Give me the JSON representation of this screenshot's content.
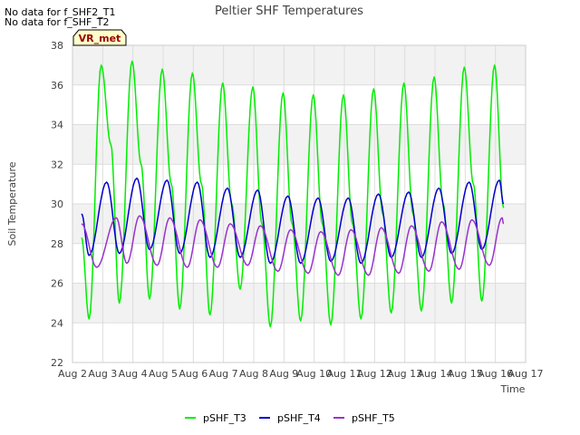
{
  "notes": [
    "No data for f_SHF2_T1",
    "No data for f_SHF_T2"
  ],
  "badge": "VR_met",
  "chart_data": {
    "type": "line",
    "title": "Peltier SHF Temperatures",
    "xlabel": "Time",
    "ylabel": "Soil Temperature",
    "xlim": [
      2,
      17
    ],
    "ylim": [
      22,
      38
    ],
    "x_ticks": [
      2,
      3,
      4,
      5,
      6,
      7,
      8,
      9,
      10,
      11,
      12,
      13,
      14,
      15,
      16,
      17
    ],
    "x_tick_labels": [
      "Aug 2",
      "Aug 3",
      "Aug 4",
      "Aug 5",
      "Aug 6",
      "Aug 7",
      "Aug 8",
      "Aug 9",
      "Aug 10",
      "Aug 11",
      "Aug 12",
      "Aug 13",
      "Aug 14",
      "Aug 15",
      "Aug 16",
      "Aug 17"
    ],
    "y_ticks": [
      22,
      24,
      26,
      28,
      30,
      32,
      34,
      36,
      38
    ],
    "grid": true,
    "legend": "bottom",
    "series": [
      {
        "name": "pSHF_T3",
        "color": "#00ee00",
        "x": [
          2.3,
          2.55,
          2.95,
          3.27,
          3.55,
          3.97,
          4.27,
          4.55,
          4.97,
          5.27,
          5.55,
          5.97,
          6.27,
          6.55,
          6.97,
          7.27,
          7.55,
          7.97,
          8.27,
          8.55,
          8.97,
          9.27,
          9.55,
          9.97,
          10.27,
          10.55,
          10.97,
          11.27,
          11.55,
          11.97,
          12.27,
          12.55,
          12.97,
          13.27,
          13.55,
          13.97,
          14.27,
          14.55,
          14.97,
          15.27,
          15.55,
          15.97,
          16.27
        ],
        "y": [
          28.3,
          24.2,
          37.0,
          33.0,
          25.0,
          37.2,
          32.0,
          25.2,
          36.8,
          31.0,
          24.7,
          36.6,
          31.0,
          24.4,
          36.1,
          30.0,
          25.7,
          35.9,
          29.0,
          23.8,
          35.6,
          29.0,
          24.1,
          35.5,
          29.0,
          23.9,
          35.5,
          29.0,
          24.2,
          35.8,
          29.5,
          24.5,
          36.1,
          29.5,
          24.6,
          36.4,
          30.0,
          25.0,
          36.9,
          31.0,
          25.1,
          37.0,
          29.8
        ]
      },
      {
        "name": "pSHF_T4",
        "color": "#0000cc",
        "x": [
          2.3,
          2.55,
          3.13,
          3.55,
          4.13,
          4.55,
          5.13,
          5.55,
          6.13,
          6.55,
          7.13,
          7.55,
          8.13,
          8.55,
          9.13,
          9.55,
          10.13,
          10.55,
          11.13,
          11.55,
          12.13,
          12.55,
          13.13,
          13.55,
          14.13,
          14.55,
          15.13,
          15.55,
          16.13,
          16.27
        ],
        "y": [
          29.5,
          27.4,
          31.1,
          27.5,
          31.3,
          27.7,
          31.2,
          27.5,
          31.1,
          27.3,
          30.8,
          27.3,
          30.7,
          27.0,
          30.4,
          27.0,
          30.3,
          27.1,
          30.3,
          27.0,
          30.5,
          27.3,
          30.6,
          27.3,
          30.8,
          27.5,
          31.1,
          27.7,
          31.2,
          30.0
        ]
      },
      {
        "name": "pSHF_T5",
        "color": "#9933cc",
        "x": [
          2.3,
          2.8,
          3.45,
          3.8,
          4.22,
          4.8,
          5.22,
          5.8,
          6.22,
          6.8,
          7.22,
          7.8,
          8.22,
          8.8,
          9.22,
          9.8,
          10.22,
          10.8,
          11.22,
          11.8,
          12.22,
          12.8,
          13.22,
          13.8,
          14.22,
          14.8,
          15.22,
          15.8,
          16.22,
          16.27
        ],
        "y": [
          29.0,
          26.8,
          29.3,
          27.0,
          29.4,
          26.9,
          29.3,
          26.8,
          29.2,
          26.8,
          29.0,
          26.9,
          28.9,
          26.6,
          28.7,
          26.5,
          28.6,
          26.4,
          28.7,
          26.4,
          28.8,
          26.5,
          28.9,
          26.6,
          29.1,
          26.7,
          29.2,
          26.9,
          29.3,
          29.0
        ]
      }
    ]
  }
}
